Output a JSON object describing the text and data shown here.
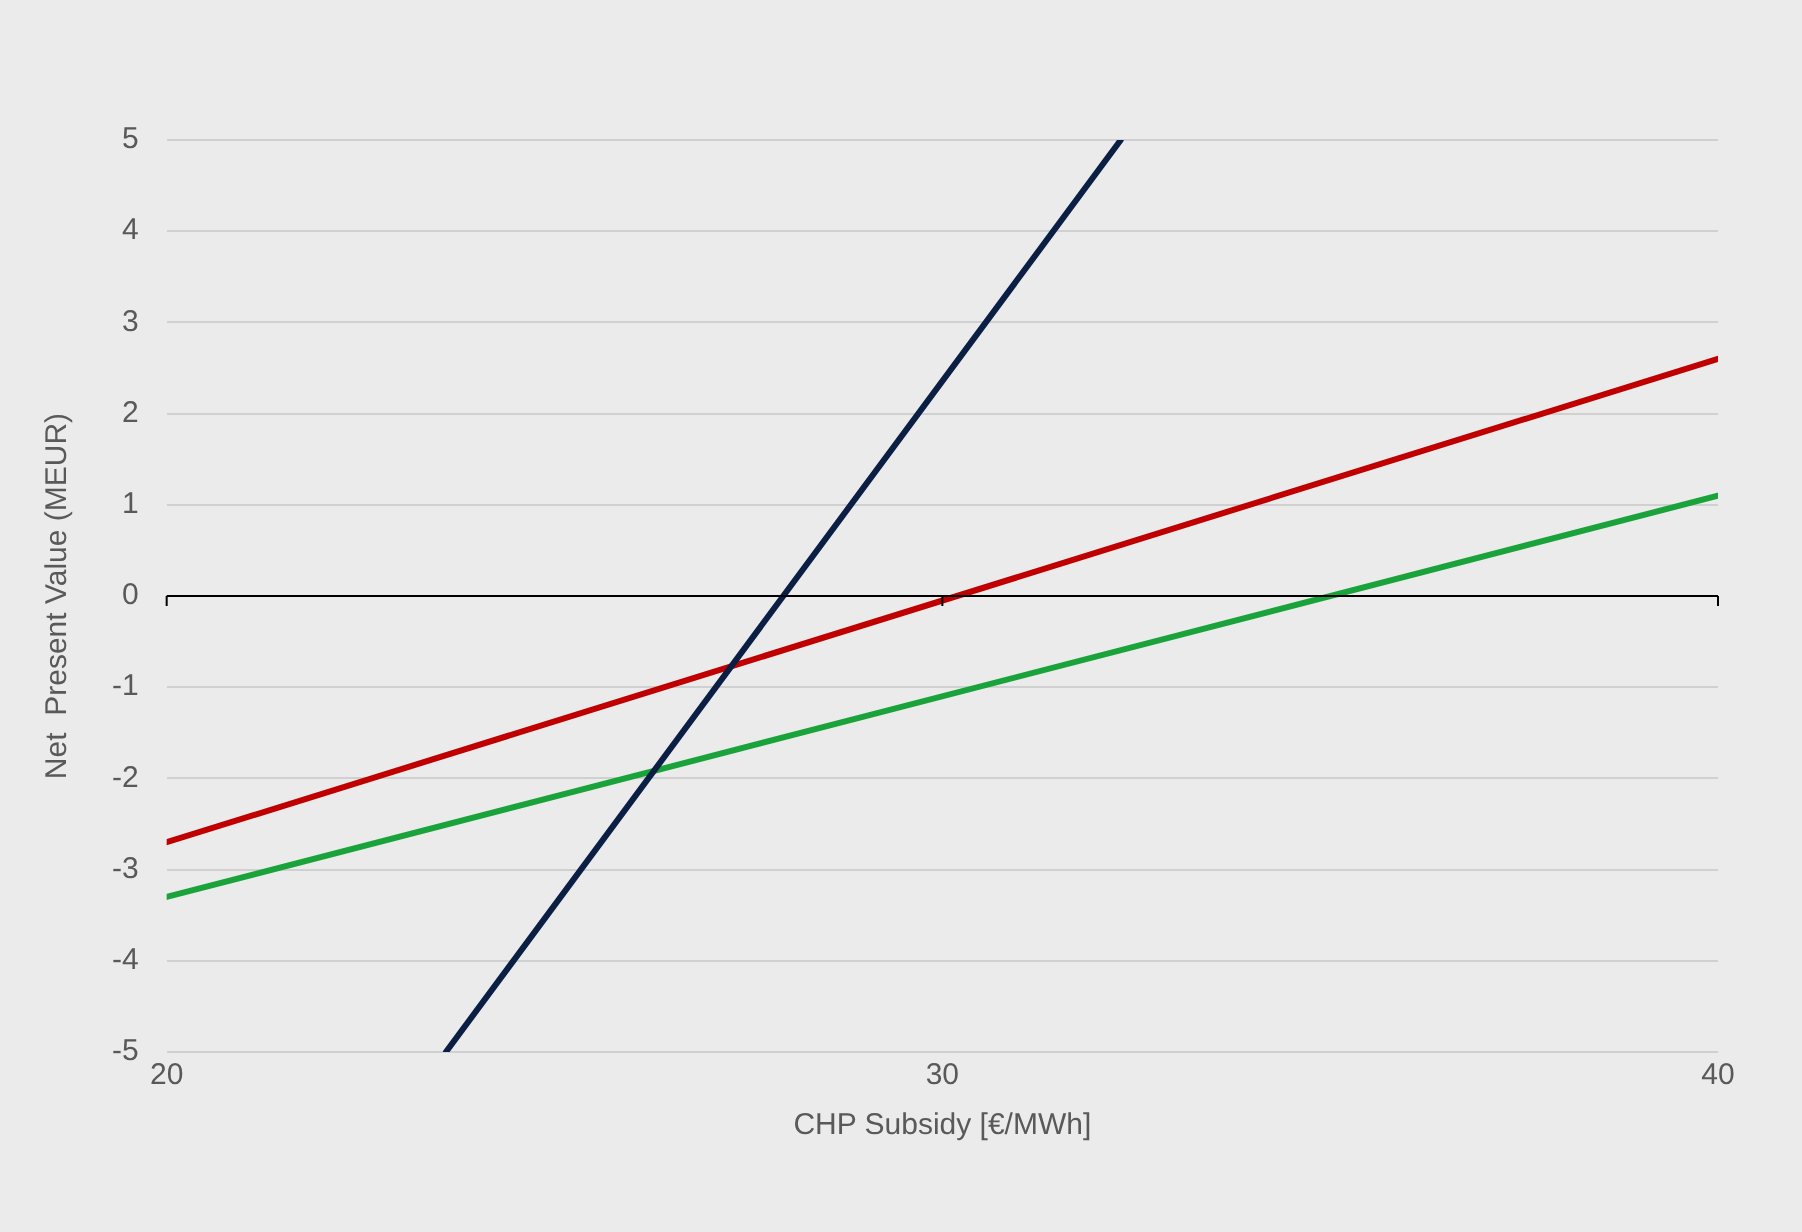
{
  "chart_data": {
    "type": "line",
    "xlabel": "CHP Subsidy [€/MWh]",
    "ylabel": "Net  Present Value (MEUR)",
    "xlim": [
      20,
      40
    ],
    "xticks": [
      20,
      30,
      40
    ],
    "ylim": [
      -5,
      5
    ],
    "yticks": [
      -5,
      -4,
      -3,
      -2,
      -1,
      0,
      1,
      2,
      3,
      4,
      5
    ],
    "grid": "y",
    "legend": false,
    "marker": "none",
    "line_style": "solid",
    "ref_lines": [
      {
        "axis": "y",
        "value": 0,
        "color": "#000000"
      }
    ],
    "series": [
      {
        "color": "#0b1f44",
        "x": [
          23.6,
          32.3
        ],
        "values": [
          -5,
          5
        ]
      },
      {
        "color": "#c00000",
        "x": [
          20,
          40
        ],
        "values": [
          -2.7,
          2.6
        ]
      },
      {
        "color": "#1aa33a",
        "x": [
          20,
          40
        ],
        "values": [
          -3.3,
          1.1
        ]
      }
    ]
  }
}
